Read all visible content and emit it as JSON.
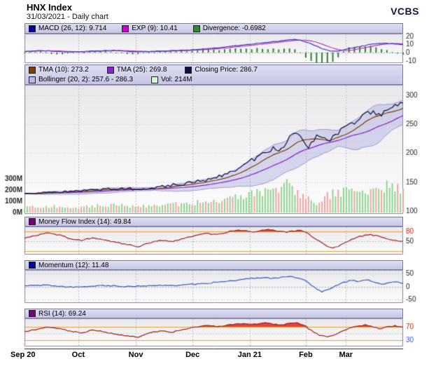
{
  "header": {
    "title": "HNX Index",
    "subtitle": "31/03/2021 - Daily chart",
    "brand": "VCBS"
  },
  "chart_data": {
    "type": "line",
    "title": "HNX Index",
    "subtitle": "31/03/2021 - Daily chart",
    "x_axis": {
      "labels": [
        "Sep 20",
        "Oct",
        "Nov",
        "Dec",
        "Jan 21",
        "Feb",
        "Mar"
      ],
      "fractions": [
        0,
        0.142,
        0.294,
        0.444,
        0.595,
        0.743,
        0.849
      ]
    },
    "panels": [
      {
        "id": "macd",
        "legend": [
          {
            "label": "MACD (26, 12): 9.714",
            "color": "#000099"
          },
          {
            "label": "EXP (9): 10.41",
            "color": "#cc00cc"
          },
          {
            "label": "Divergence: -0.6982",
            "color": "#2e8b2e"
          }
        ],
        "ylim": [
          -13,
          23
        ],
        "ticks": [
          {
            "v": 20,
            "label": "20"
          },
          {
            "v": 10,
            "label": "10"
          },
          {
            "v": 0,
            "label": "0"
          },
          {
            "v": -10,
            "label": "-10"
          }
        ],
        "line_color": "#4433bb",
        "signal_color": "#bb33bb",
        "hist_color": "#2f7f2f",
        "points": [
          [
            0,
            1.2
          ],
          [
            0.04,
            2.6
          ],
          [
            0.08,
            1.4
          ],
          [
            0.12,
            0.6
          ],
          [
            0.16,
            1.2
          ],
          [
            0.2,
            2.2
          ],
          [
            0.24,
            2.6
          ],
          [
            0.28,
            1.4
          ],
          [
            0.32,
            1
          ],
          [
            0.36,
            1.8
          ],
          [
            0.4,
            2.4
          ],
          [
            0.44,
            3.2
          ],
          [
            0.48,
            4.6
          ],
          [
            0.52,
            6.2
          ],
          [
            0.56,
            8.2
          ],
          [
            0.6,
            10.4
          ],
          [
            0.64,
            12.4
          ],
          [
            0.67,
            14
          ],
          [
            0.7,
            15.4
          ],
          [
            0.72,
            15.8
          ],
          [
            0.74,
            13.5
          ],
          [
            0.765,
            9
          ],
          [
            0.79,
            4
          ],
          [
            0.81,
            1.5
          ],
          [
            0.83,
            2
          ],
          [
            0.86,
            4.8
          ],
          [
            0.89,
            7.8
          ],
          [
            0.92,
            10.2
          ],
          [
            0.95,
            11.2
          ],
          [
            0.97,
            10.8
          ],
          [
            1,
            9.714
          ]
        ]
      },
      {
        "id": "price",
        "legend": [
          {
            "label": "TMA (10): 273.2",
            "color": "#7b3f00"
          },
          {
            "label": "TMA (25): 269.8",
            "color": "#8822cc"
          },
          {
            "label": "Closing Price: 286.7",
            "color": "#101040"
          }
        ],
        "legend2": [
          {
            "label": "Bollinger (20, 2): 257.6 - 286.3",
            "color": "#b8b8e8"
          },
          {
            "label": "Vol: 214M",
            "color": "#ccffcc"
          }
        ],
        "ylim": [
          95,
          318
        ],
        "ticks": [
          {
            "v": 300,
            "label": "300"
          },
          {
            "v": 250,
            "label": "250"
          },
          {
            "v": 200,
            "label": "200"
          },
          {
            "v": 150,
            "label": "150"
          },
          {
            "v": 100,
            "label": "100"
          }
        ],
        "volume_ticks": [
          {
            "v": 300,
            "label": "300M"
          },
          {
            "v": 200,
            "label": "200M"
          },
          {
            "v": 100,
            "label": "100M"
          },
          {
            "v": 0,
            "label": "0M"
          }
        ],
        "close_color": "#101040",
        "tma10_color": "#7b3f00",
        "tma25_color": "#8822cc",
        "band_color": "#9a9ad8",
        "vol_up_color": "#8fd48f",
        "vol_down_color": "#f2a3a3",
        "last_close": 286.7,
        "last_volume_m": 214,
        "close_points": [
          [
            0,
            131
          ],
          [
            0.02,
            129.5
          ],
          [
            0.045,
            132
          ],
          [
            0.07,
            133.5
          ],
          [
            0.095,
            132.5
          ],
          [
            0.12,
            134
          ],
          [
            0.142,
            135
          ],
          [
            0.165,
            136
          ],
          [
            0.19,
            136.5
          ],
          [
            0.215,
            137.5
          ],
          [
            0.24,
            138.5
          ],
          [
            0.265,
            139.5
          ],
          [
            0.294,
            138
          ],
          [
            0.32,
            140
          ],
          [
            0.345,
            141.5
          ],
          [
            0.37,
            143
          ],
          [
            0.4,
            145.5
          ],
          [
            0.42,
            147
          ],
          [
            0.444,
            149
          ],
          [
            0.465,
            152
          ],
          [
            0.49,
            156
          ],
          [
            0.515,
            161
          ],
          [
            0.54,
            167
          ],
          [
            0.565,
            174
          ],
          [
            0.585,
            181
          ],
          [
            0.602,
            188
          ],
          [
            0.62,
            196
          ],
          [
            0.638,
            203
          ],
          [
            0.655,
            208
          ],
          [
            0.672,
            204
          ],
          [
            0.688,
            214
          ],
          [
            0.7,
            228
          ],
          [
            0.712,
            240
          ],
          [
            0.725,
            233
          ],
          [
            0.738,
            218
          ],
          [
            0.748,
            205
          ],
          [
            0.762,
            220
          ],
          [
            0.775,
            234
          ],
          [
            0.788,
            228
          ],
          [
            0.8,
            219
          ],
          [
            0.815,
            227
          ],
          [
            0.83,
            237
          ],
          [
            0.845,
            245
          ],
          [
            0.862,
            252
          ],
          [
            0.878,
            257
          ],
          [
            0.895,
            263
          ],
          [
            0.91,
            270
          ],
          [
            0.925,
            272
          ],
          [
            0.94,
            266
          ],
          [
            0.955,
            269
          ],
          [
            0.97,
            276
          ],
          [
            0.985,
            282
          ],
          [
            1,
            286.7
          ]
        ],
        "volume_points": [
          [
            0,
            45
          ],
          [
            0.05,
            52
          ],
          [
            0.1,
            56
          ],
          [
            0.142,
            50
          ],
          [
            0.19,
            60
          ],
          [
            0.24,
            66
          ],
          [
            0.294,
            58
          ],
          [
            0.35,
            68
          ],
          [
            0.4,
            74
          ],
          [
            0.444,
            85
          ],
          [
            0.48,
            96
          ],
          [
            0.52,
            112
          ],
          [
            0.56,
            132
          ],
          [
            0.6,
            165
          ],
          [
            0.63,
            185
          ],
          [
            0.66,
            205
          ],
          [
            0.685,
            275
          ],
          [
            0.7,
            210
          ],
          [
            0.72,
            185
          ],
          [
            0.74,
            150
          ],
          [
            0.76,
            80
          ],
          [
            0.775,
            55
          ],
          [
            0.79,
            120
          ],
          [
            0.81,
            165
          ],
          [
            0.84,
            185
          ],
          [
            0.87,
            205
          ],
          [
            0.9,
            195
          ],
          [
            0.93,
            215
          ],
          [
            0.96,
            235
          ],
          [
            0.98,
            205
          ],
          [
            1,
            214
          ]
        ]
      },
      {
        "id": "mfi",
        "legend": [
          {
            "label": "Money Flow Index (14): 49.84",
            "color": "#770077"
          }
        ],
        "ylim": [
          8,
          96
        ],
        "ticks": [
          {
            "v": 80,
            "label": "80",
            "color": "#cc2200"
          },
          {
            "v": 50,
            "label": "50"
          }
        ],
        "thresholds": [
          80,
          20
        ],
        "line_color": "#992222",
        "fill_color": "#e84040",
        "last": 49.84,
        "points": [
          [
            0,
            60
          ],
          [
            0.03,
            68
          ],
          [
            0.06,
            76
          ],
          [
            0.09,
            70
          ],
          [
            0.12,
            58
          ],
          [
            0.15,
            53
          ],
          [
            0.18,
            61
          ],
          [
            0.21,
            56
          ],
          [
            0.24,
            47
          ],
          [
            0.27,
            40
          ],
          [
            0.3,
            33
          ],
          [
            0.33,
            44
          ],
          [
            0.36,
            54
          ],
          [
            0.39,
            49
          ],
          [
            0.42,
            59
          ],
          [
            0.45,
            68
          ],
          [
            0.48,
            74
          ],
          [
            0.51,
            71
          ],
          [
            0.54,
            80
          ],
          [
            0.565,
            85
          ],
          [
            0.59,
            82
          ],
          [
            0.61,
            79
          ],
          [
            0.63,
            84
          ],
          [
            0.65,
            86
          ],
          [
            0.67,
            82
          ],
          [
            0.69,
            78
          ],
          [
            0.71,
            82
          ],
          [
            0.73,
            84
          ],
          [
            0.75,
            74
          ],
          [
            0.77,
            56
          ],
          [
            0.79,
            40
          ],
          [
            0.81,
            29
          ],
          [
            0.83,
            34
          ],
          [
            0.85,
            46
          ],
          [
            0.87,
            58
          ],
          [
            0.89,
            66
          ],
          [
            0.91,
            71
          ],
          [
            0.93,
            67
          ],
          [
            0.95,
            60
          ],
          [
            0.97,
            54
          ],
          [
            1,
            49.84
          ]
        ]
      },
      {
        "id": "momentum",
        "legend": [
          {
            "label": "Momentum (12): 11.48",
            "color": "#000099"
          }
        ],
        "ylim": [
          -62,
          62
        ],
        "ticks": [
          {
            "v": 50,
            "label": "50"
          },
          {
            "v": 0,
            "label": "0"
          },
          {
            "v": -50,
            "label": "-50"
          }
        ],
        "line_color": "#3b5bc0",
        "last": 11.48,
        "points": [
          [
            0,
            2
          ],
          [
            0.04,
            5
          ],
          [
            0.08,
            3
          ],
          [
            0.12,
            -2
          ],
          [
            0.16,
            1
          ],
          [
            0.2,
            4
          ],
          [
            0.24,
            2
          ],
          [
            0.28,
            -1
          ],
          [
            0.32,
            3
          ],
          [
            0.36,
            5
          ],
          [
            0.4,
            4
          ],
          [
            0.44,
            8
          ],
          [
            0.48,
            12
          ],
          [
            0.52,
            18
          ],
          [
            0.56,
            24
          ],
          [
            0.6,
            30
          ],
          [
            0.63,
            34
          ],
          [
            0.655,
            30
          ],
          [
            0.68,
            35
          ],
          [
            0.705,
            38
          ],
          [
            0.725,
            32
          ],
          [
            0.745,
            18
          ],
          [
            0.765,
            -2
          ],
          [
            0.785,
            -20
          ],
          [
            0.805,
            -12
          ],
          [
            0.825,
            4
          ],
          [
            0.845,
            16
          ],
          [
            0.865,
            24
          ],
          [
            0.885,
            18
          ],
          [
            0.905,
            26
          ],
          [
            0.925,
            16
          ],
          [
            0.945,
            9
          ],
          [
            0.965,
            15
          ],
          [
            0.985,
            19
          ],
          [
            1,
            11.48
          ]
        ]
      },
      {
        "id": "rsi",
        "legend": [
          {
            "label": "RSI (14): 69.24",
            "color": "#770077"
          }
        ],
        "ylim": [
          10,
          96
        ],
        "ticks": [
          {
            "v": 70,
            "label": "70",
            "color": "#cc2200"
          },
          {
            "v": 30,
            "label": "30",
            "color": "#2255cc"
          }
        ],
        "thresholds": [
          70,
          30
        ],
        "line_color": "#992222",
        "fill_color": "#e84040",
        "last": 69.24,
        "points": [
          [
            0,
            56
          ],
          [
            0.03,
            62
          ],
          [
            0.06,
            71
          ],
          [
            0.09,
            66
          ],
          [
            0.12,
            57
          ],
          [
            0.15,
            52
          ],
          [
            0.18,
            60
          ],
          [
            0.21,
            55
          ],
          [
            0.24,
            48
          ],
          [
            0.27,
            43
          ],
          [
            0.3,
            39
          ],
          [
            0.33,
            51
          ],
          [
            0.36,
            58
          ],
          [
            0.39,
            54
          ],
          [
            0.42,
            62
          ],
          [
            0.45,
            70
          ],
          [
            0.48,
            74
          ],
          [
            0.51,
            71
          ],
          [
            0.54,
            76
          ],
          [
            0.57,
            80
          ],
          [
            0.6,
            78
          ],
          [
            0.63,
            82
          ],
          [
            0.655,
            79
          ],
          [
            0.68,
            76
          ],
          [
            0.7,
            80
          ],
          [
            0.72,
            82
          ],
          [
            0.74,
            73
          ],
          [
            0.76,
            57
          ],
          [
            0.78,
            44
          ],
          [
            0.8,
            39
          ],
          [
            0.82,
            46
          ],
          [
            0.84,
            58
          ],
          [
            0.86,
            67
          ],
          [
            0.88,
            73
          ],
          [
            0.9,
            76
          ],
          [
            0.92,
            70
          ],
          [
            0.94,
            64
          ],
          [
            0.96,
            71
          ],
          [
            0.98,
            73
          ],
          [
            1,
            69.24
          ]
        ]
      }
    ]
  }
}
